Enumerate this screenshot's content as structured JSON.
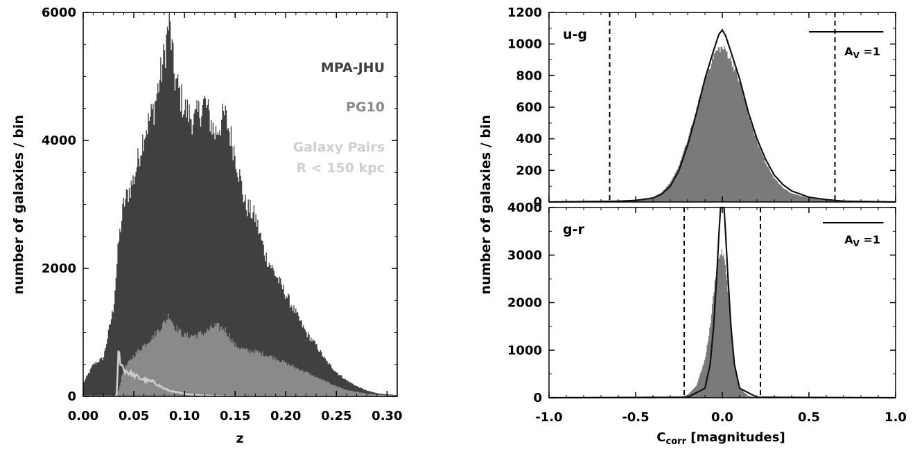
{
  "chart_data": [
    {
      "type": "area",
      "panel": "left",
      "xlabel": "z",
      "ylabel": "number of galaxies / bin",
      "xlim": [
        0.0,
        0.31
      ],
      "ylim": [
        0,
        6000
      ],
      "xticks": [
        0.0,
        0.05,
        0.1,
        0.15,
        0.2,
        0.25,
        0.3
      ],
      "xtick_labels": [
        "0.00",
        "0.05",
        "0.10",
        "0.15",
        "0.20",
        "0.25",
        "0.30"
      ],
      "yticks": [
        0,
        2000,
        4000,
        6000
      ],
      "ytick_labels": [
        "0",
        "2000",
        "4000",
        "6000"
      ],
      "legend_position": "right, stacked text",
      "series": [
        {
          "name": "MPA-JHU",
          "color": "#404040",
          "style": "filled histogram",
          "x": [
            0.0,
            0.01,
            0.02,
            0.03,
            0.035,
            0.04,
            0.05,
            0.06,
            0.07,
            0.08,
            0.085,
            0.09,
            0.1,
            0.11,
            0.12,
            0.13,
            0.14,
            0.15,
            0.16,
            0.17,
            0.18,
            0.19,
            0.2,
            0.21,
            0.22,
            0.23,
            0.24,
            0.25,
            0.26,
            0.27,
            0.28,
            0.29,
            0.3,
            0.31
          ],
          "y": [
            200,
            500,
            600,
            1400,
            2400,
            3000,
            3400,
            4100,
            4500,
            5300,
            5900,
            5000,
            4500,
            4300,
            4600,
            4100,
            4400,
            3800,
            3000,
            2800,
            2200,
            1900,
            1600,
            1300,
            1000,
            800,
            550,
            380,
            250,
            160,
            90,
            50,
            30,
            20
          ]
        },
        {
          "name": "PG10",
          "color": "#8a8a8a",
          "style": "filled histogram",
          "x": [
            0.0,
            0.03,
            0.035,
            0.04,
            0.05,
            0.06,
            0.07,
            0.08,
            0.085,
            0.09,
            0.1,
            0.11,
            0.12,
            0.13,
            0.14,
            0.15,
            0.16,
            0.17,
            0.18,
            0.19,
            0.2,
            0.21,
            0.22,
            0.23,
            0.24,
            0.25,
            0.26,
            0.27,
            0.28,
            0.29,
            0.3,
            0.31
          ],
          "y": [
            0,
            0,
            100,
            420,
            640,
            800,
            950,
            1150,
            1280,
            1100,
            950,
            950,
            1000,
            1100,
            1050,
            800,
            720,
            700,
            650,
            600,
            520,
            450,
            380,
            300,
            230,
            160,
            100,
            70,
            45,
            30,
            20,
            10
          ]
        },
        {
          "name": "Galaxy Pairs",
          "color": "#cfcfcf",
          "style": "step line",
          "x": [
            0.0,
            0.033,
            0.035,
            0.036,
            0.04,
            0.045,
            0.05,
            0.055,
            0.06,
            0.065,
            0.07,
            0.075,
            0.08,
            0.085,
            0.09,
            0.1,
            0.11,
            0.12,
            0.13,
            0.14,
            0.16
          ],
          "y": [
            0,
            0,
            760,
            580,
            420,
            370,
            330,
            290,
            260,
            240,
            220,
            170,
            120,
            90,
            70,
            40,
            25,
            15,
            10,
            5,
            0
          ]
        }
      ],
      "annotations": [
        "MPA-JHU",
        "PG10",
        "Galaxy Pairs",
        "R < 150 kpc"
      ]
    },
    {
      "type": "area",
      "panel": "right-top",
      "label": "u-g",
      "ylim": [
        0,
        1200
      ],
      "xlim": [
        -1.0,
        1.0
      ],
      "yticks": [
        0,
        200,
        400,
        600,
        800,
        1000,
        1200
      ],
      "ytick_labels": [
        "0",
        "200",
        "400",
        "600",
        "800",
        "1000",
        "1200"
      ],
      "vlines": [
        -0.65,
        0.65
      ],
      "scale_bar_label": "A_V =1",
      "scale_bar_x": [
        0.5,
        0.93
      ],
      "series": [
        {
          "color": "#7a7a7a",
          "style": "filled histogram",
          "x": [
            -1.0,
            -0.6,
            -0.5,
            -0.4,
            -0.35,
            -0.3,
            -0.25,
            -0.2,
            -0.15,
            -0.1,
            -0.05,
            -0.02,
            0.0,
            0.02,
            0.05,
            0.1,
            0.15,
            0.2,
            0.25,
            0.3,
            0.35,
            0.4,
            0.5,
            0.6,
            0.7,
            1.0
          ],
          "y": [
            0,
            5,
            10,
            30,
            60,
            120,
            230,
            390,
            580,
            770,
            930,
            970,
            975,
            960,
            900,
            760,
            560,
            380,
            250,
            150,
            90,
            55,
            25,
            10,
            5,
            0
          ]
        },
        {
          "color": "#111111",
          "style": "line",
          "x": [
            -1.0,
            -0.6,
            -0.5,
            -0.4,
            -0.35,
            -0.3,
            -0.25,
            -0.2,
            -0.15,
            -0.1,
            -0.05,
            -0.02,
            0.0,
            0.02,
            0.05,
            0.1,
            0.15,
            0.2,
            0.25,
            0.3,
            0.35,
            0.4,
            0.5,
            0.6,
            0.7,
            1.0
          ],
          "y": [
            0,
            5,
            10,
            25,
            50,
            100,
            200,
            360,
            560,
            780,
            960,
            1060,
            1090,
            1050,
            950,
            780,
            570,
            400,
            270,
            170,
            110,
            70,
            30,
            15,
            5,
            0
          ]
        }
      ]
    },
    {
      "type": "area",
      "panel": "right-bottom",
      "label": "g-r",
      "xlabel": "C_corr [magnitudes]",
      "ylabel": "number of galaxies / bin",
      "xlim": [
        -1.0,
        1.0
      ],
      "ylim": [
        0,
        4000
      ],
      "xticks": [
        -1.0,
        -0.5,
        0.0,
        0.5,
        1.0
      ],
      "xtick_labels": [
        "-1.0",
        "-0.5",
        "0.0",
        "0.5",
        "1.0"
      ],
      "yticks": [
        0,
        1000,
        2000,
        3000,
        4000
      ],
      "ytick_labels": [
        "0",
        "1000",
        "2000",
        "3000",
        "4000"
      ],
      "vlines": [
        -0.22,
        0.22
      ],
      "scale_bar_label": "A_V =1",
      "scale_bar_x": [
        0.58,
        0.93
      ],
      "series": [
        {
          "color": "#7a7a7a",
          "style": "filled histogram",
          "x": [
            -1.0,
            -0.25,
            -0.2,
            -0.15,
            -0.1,
            -0.07,
            -0.05,
            -0.03,
            -0.01,
            0.0,
            0.01,
            0.03,
            0.05,
            0.07,
            0.1,
            0.15,
            0.2,
            1.0
          ],
          "y": [
            0,
            10,
            60,
            250,
            800,
            1500,
            2200,
            2800,
            3050,
            3050,
            2950,
            2400,
            1500,
            700,
            200,
            40,
            5,
            0
          ]
        },
        {
          "color": "#111111",
          "style": "line",
          "x": [
            -1.0,
            -0.2,
            -0.1,
            -0.07,
            -0.05,
            -0.03,
            -0.02,
            -0.01,
            0.0,
            0.01,
            0.02,
            0.03,
            0.05,
            0.07,
            0.1,
            0.2,
            1.0
          ],
          "y": [
            0,
            10,
            200,
            700,
            1500,
            2700,
            3400,
            4000,
            4300,
            4000,
            3400,
            2700,
            1500,
            700,
            200,
            10,
            0
          ]
        }
      ]
    }
  ]
}
